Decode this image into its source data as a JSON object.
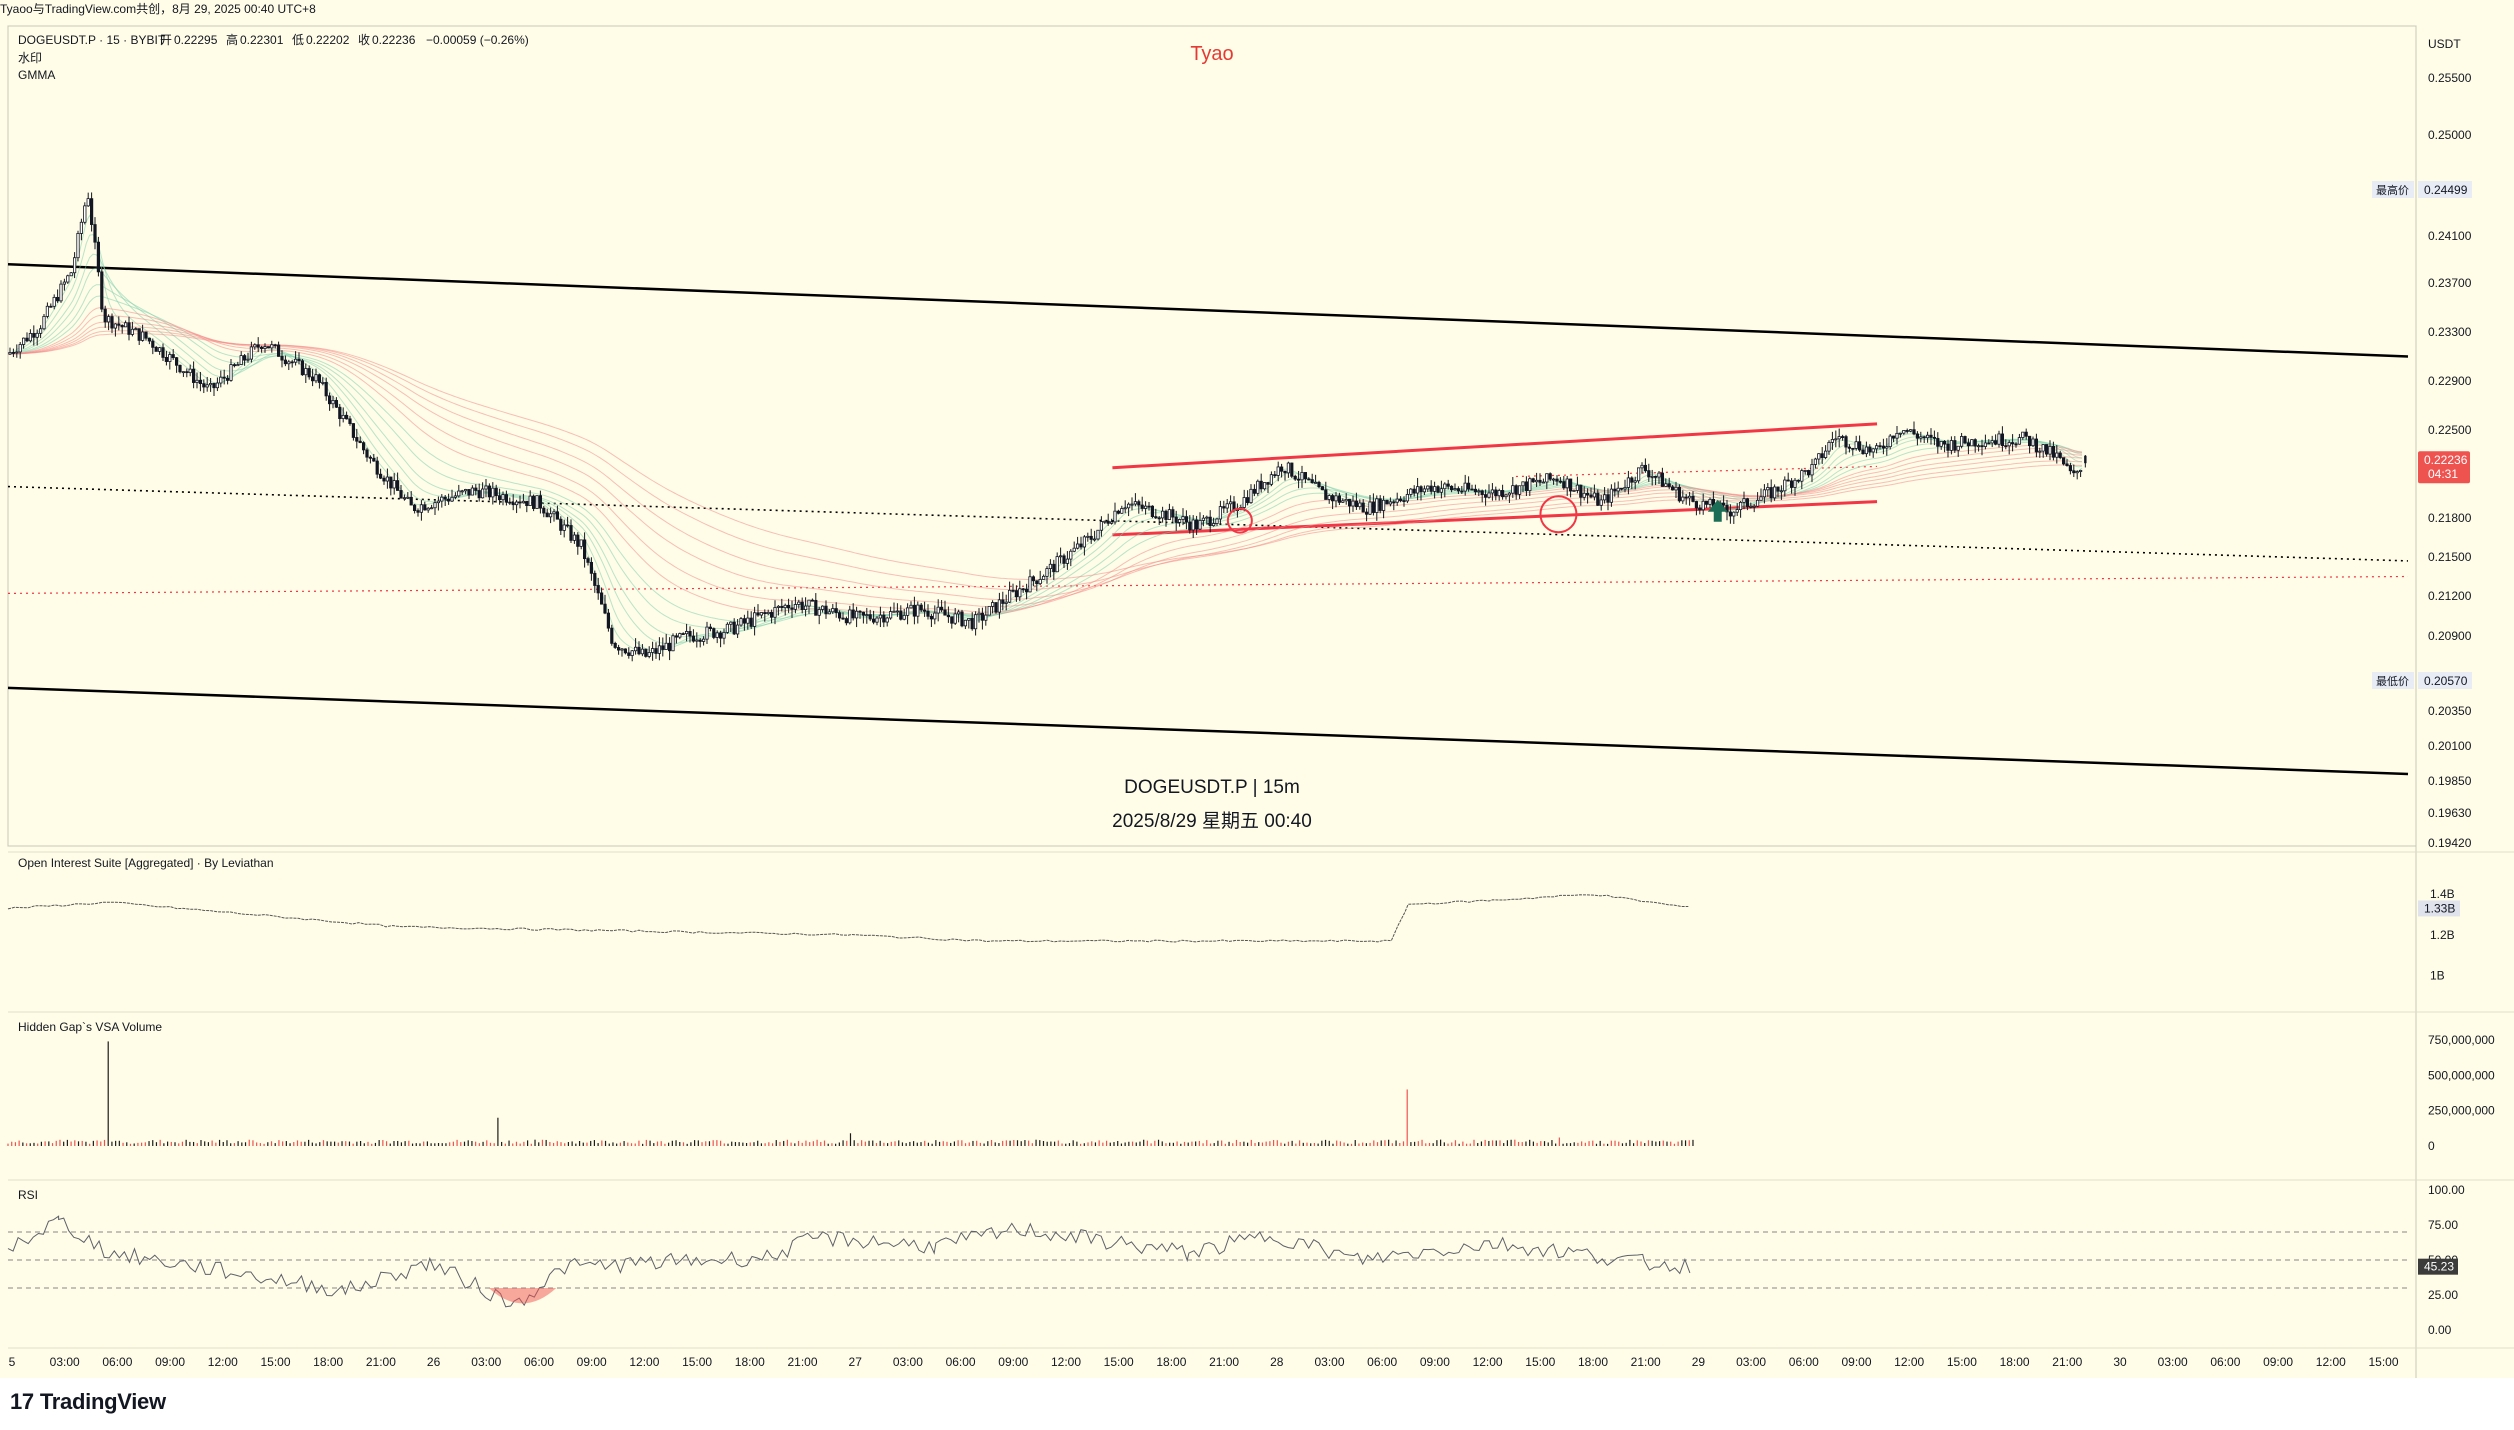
{
  "share_line": "Tyaoo与TradingView.com共创，8月 29, 2025 00:40 UTC+8",
  "header": {
    "symbol_line": "DOGEUSDT.P · 15 · BYBIT",
    "ohlc": {
      "open_label": "开",
      "open": "0.22295",
      "high_label": "高",
      "high": "0.22301",
      "low_label": "低",
      "low": "0.22202",
      "close_label": "收",
      "close": "0.22236",
      "change": "−0.00059 (−0.26%)"
    },
    "indicator_1": "水印",
    "indicator_2": "GMMA"
  },
  "watermark": {
    "author": "Tyao",
    "symbol_tf": "DOGEUSDT.P | 15m",
    "datetime": "2025/8/29 星期五 00:40"
  },
  "price_axis": {
    "currency": "USDT",
    "ticks": [
      "0.25500",
      "0.25000",
      "0.24100",
      "0.23700",
      "0.23300",
      "0.22900",
      "0.22500",
      "0.21800",
      "0.21500",
      "0.21200",
      "0.20900",
      "0.20350",
      "0.20100",
      "0.19850",
      "0.19630",
      "0.19420"
    ],
    "high_tag": {
      "label": "最高价",
      "value": "0.24499"
    },
    "low_tag": {
      "label": "最低价",
      "value": "0.20570"
    },
    "last_price": {
      "value": "0.22236",
      "countdown": "04:31"
    }
  },
  "oi_pane": {
    "title": "Open Interest Suite [Aggregated] · By Leviathan",
    "ticks": [
      "1.4B",
      "1.2B",
      "1B"
    ],
    "current": "1.33B"
  },
  "vol_pane": {
    "title": "Hidden Gap`s VSA Volume",
    "ticks": [
      "750,000,000",
      "500,000,000",
      "250,000,000",
      "0"
    ]
  },
  "rsi_pane": {
    "title": "RSI",
    "ticks": [
      "100.00",
      "75.00",
      "50.00",
      "25.00",
      "0.00"
    ],
    "current": "45.23"
  },
  "time_axis": [
    "5",
    "03:00",
    "06:00",
    "09:00",
    "12:00",
    "15:00",
    "18:00",
    "21:00",
    "26",
    "03:00",
    "06:00",
    "09:00",
    "12:00",
    "15:00",
    "18:00",
    "21:00",
    "27",
    "03:00",
    "06:00",
    "09:00",
    "12:00",
    "15:00",
    "18:00",
    "21:00",
    "28",
    "03:00",
    "06:00",
    "09:00",
    "12:00",
    "15:00",
    "18:00",
    "21:00",
    "29",
    "03:00",
    "06:00",
    "09:00",
    "12:00",
    "15:00",
    "18:00",
    "21:00",
    "30",
    "03:00",
    "06:00",
    "09:00",
    "12:00",
    "15:00"
  ],
  "branding": "TradingView",
  "colors": {
    "background": "#fffde7",
    "up": "#26a69a",
    "down": "#ef5350",
    "candle": "#131722",
    "channel_red": "#f23645",
    "arrow": "#1b6e55"
  },
  "chart_data": {
    "type": "candlestick",
    "symbol": "DOGEUSDT.P",
    "timeframe": "15",
    "exchange": "BYBIT",
    "ylim": [
      0.1942,
      0.2575
    ],
    "x_range": [
      "2025-08-25 23:00",
      "2025-08-30 16:00"
    ],
    "ohlc_last": {
      "open": 0.22295,
      "high": 0.22301,
      "low": 0.22202,
      "close": 0.22236
    },
    "close_path": [
      [
        "2025-08-25 23:00",
        0.2312
      ],
      [
        "2025-08-26 00:30",
        0.2335
      ],
      [
        "2025-08-26 02:00",
        0.238
      ],
      [
        "2025-08-26 02:45",
        0.2449
      ],
      [
        "2025-08-26 03:30",
        0.2342
      ],
      [
        "2025-08-26 05:30",
        0.2325
      ],
      [
        "2025-08-26 08:30",
        0.2282
      ],
      [
        "2025-08-26 11:00",
        0.2322
      ],
      [
        "2025-08-26 13:30",
        0.2292
      ],
      [
        "2025-08-26 16:00",
        0.2228
      ],
      [
        "2025-08-26 18:00",
        0.2188
      ],
      [
        "2025-08-26 21:00",
        0.2202
      ],
      [
        "2025-08-27 00:00",
        0.2192
      ],
      [
        "2025-08-27 02:00",
        0.2158
      ],
      [
        "2025-08-27 03:30",
        0.2085
      ],
      [
        "2025-08-27 05:00",
        0.2075
      ],
      [
        "2025-08-27 07:00",
        0.209
      ],
      [
        "2025-08-27 09:00",
        0.2095
      ],
      [
        "2025-08-27 12:00",
        0.2115
      ],
      [
        "2025-08-27 15:00",
        0.2103
      ],
      [
        "2025-08-27 18:00",
        0.211
      ],
      [
        "2025-08-27 20:30",
        0.21
      ],
      [
        "2025-08-27 22:00",
        0.2118
      ],
      [
        "2025-08-28 00:00",
        0.214
      ],
      [
        "2025-08-28 02:00",
        0.2165
      ],
      [
        "2025-08-28 03:30",
        0.2192
      ],
      [
        "2025-08-28 05:30",
        0.2183
      ],
      [
        "2025-08-28 07:00",
        0.2174
      ],
      [
        "2025-08-28 09:00",
        0.2192
      ],
      [
        "2025-08-28 11:00",
        0.2222
      ],
      [
        "2025-08-28 13:00",
        0.2198
      ],
      [
        "2025-08-28 15:00",
        0.2188
      ],
      [
        "2025-08-28 18:00",
        0.2205
      ],
      [
        "2025-08-28 21:00",
        0.22
      ],
      [
        "2025-08-29 00:00",
        0.2212
      ],
      [
        "2025-08-29 02:00",
        0.2192
      ],
      [
        "2025-08-29 04:00",
        0.222
      ],
      [
        "2025-08-29 06:00",
        0.2195
      ],
      [
        "2025-08-29 08:00",
        0.2185
      ],
      [
        "2025-08-29 10:00",
        0.22
      ],
      [
        "2025-08-29 12:00",
        0.222
      ],
      [
        "2025-08-29 13:00",
        0.2245
      ],
      [
        "2025-08-29 15:00",
        0.2232
      ],
      [
        "2025-08-29 16:00",
        0.2252
      ],
      [
        "2025-08-29 18:00",
        0.2238
      ],
      [
        "2025-08-29 20:00",
        0.2242
      ],
      [
        "2025-08-29 22:00",
        0.2243
      ],
      [
        "2025-08-29 23:30",
        0.2228
      ],
      [
        "2025-08-30 00:15",
        0.2212
      ],
      [
        "2025-08-30 00:40",
        0.22236
      ]
    ],
    "trendlines": {
      "black_channel_upper": [
        [
          "2025-08-25 23:00",
          0.2386
        ],
        [
          "2025-08-30 16:00",
          0.231
        ]
      ],
      "black_channel_lower": [
        [
          "2025-08-25 23:00",
          0.2052
        ],
        [
          "2025-08-30 16:00",
          0.199
        ]
      ],
      "dotted_support": [
        [
          "2025-08-25 23:00",
          0.2205
        ],
        [
          "2025-08-30 16:00",
          0.2147
        ]
      ],
      "red_range_upper": [
        [
          "2025-08-28 03:00",
          0.222
        ],
        [
          "2025-08-29 15:00",
          0.2255
        ]
      ],
      "red_range_lower": [
        [
          "2025-08-28 03:00",
          0.2167
        ],
        [
          "2025-08-29 15:00",
          0.2193
        ]
      ],
      "red_dotted_mid": [
        [
          "2025-08-28 22:00",
          0.2213
        ],
        [
          "2025-08-29 15:00",
          0.2221
        ]
      ],
      "red_dotted_long": [
        [
          "2025-08-25 23:00",
          0.2122
        ],
        [
          "2025-08-30 16:00",
          0.2135
        ]
      ]
    },
    "annotations": [
      "circle at 2025-08-28 09:00 near 0.2178",
      "circle at 2025-08-29 00:00 near 0.2183",
      "up arrow near 0.2185"
    ],
    "open_interest_B": [
      [
        0,
        1.33
      ],
      [
        0.06,
        1.36
      ],
      [
        0.23,
        1.24
      ],
      [
        0.5,
        1.2
      ],
      [
        0.58,
        1.17
      ],
      [
        0.82,
        1.17
      ],
      [
        0.83,
        1.35
      ],
      [
        0.88,
        1.37
      ],
      [
        0.94,
        1.4
      ],
      [
        1,
        1.33
      ]
    ],
    "rsi": [
      [
        0,
        58
      ],
      [
        0.03,
        78
      ],
      [
        0.06,
        55
      ],
      [
        0.15,
        38
      ],
      [
        0.2,
        28
      ],
      [
        0.25,
        48
      ],
      [
        0.3,
        18
      ],
      [
        0.33,
        45
      ],
      [
        0.45,
        52
      ],
      [
        0.48,
        66
      ],
      [
        0.55,
        60
      ],
      [
        0.6,
        72
      ],
      [
        0.7,
        55
      ],
      [
        0.75,
        68
      ],
      [
        0.8,
        50
      ],
      [
        0.88,
        62
      ],
      [
        0.93,
        55
      ],
      [
        0.97,
        48
      ],
      [
        1,
        45.23
      ]
    ],
    "rsi_levels": [
      70,
      50,
      30
    ],
    "volume_spikes": [
      [
        0.06,
        740000000
      ],
      [
        0.29,
        200000000
      ],
      [
        0.83,
        400000000
      ],
      [
        0.5,
        90000000
      ],
      [
        0.92,
        60000000
      ]
    ],
    "volume_base": 30000000
  }
}
